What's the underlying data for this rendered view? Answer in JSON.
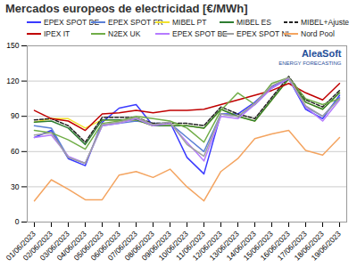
{
  "chart_data": {
    "type": "line",
    "title": "Mercados europeos de electricidad [€/MWh]",
    "annotations": [
      "AleaSoft",
      "ENERGY FORECASTING"
    ],
    "categories": [
      "01/06/2023",
      "02/06/2023",
      "03/06/2023",
      "04/06/2023",
      "05/06/2023",
      "06/06/2023",
      "07/06/2023",
      "08/06/2023",
      "09/06/2023",
      "10/06/2023",
      "11/06/2023",
      "12/06/2023",
      "13/06/2023",
      "14/06/2023",
      "15/06/2023",
      "16/06/2023",
      "17/06/2023",
      "18/06/2023",
      "19/06/2023"
    ],
    "series": [
      {
        "name": "EPEX SPOT DE",
        "color": "#3a3aff",
        "values": [
          72,
          78,
          54,
          48,
          85,
          97,
          100,
          82,
          85,
          55,
          41,
          92,
          92,
          102,
          115,
          122,
          96,
          88,
          108
        ]
      },
      {
        "name": "EPEX SPOT FR",
        "color": "#5b7fd6",
        "values": [
          82,
          80,
          55,
          50,
          82,
          84,
          86,
          84,
          84,
          72,
          60,
          92,
          90,
          100,
          114,
          122,
          98,
          90,
          106
        ]
      },
      {
        "name": "MIBEL PT",
        "color": "#f2e22e",
        "values": [
          85,
          88,
          88,
          80,
          87,
          87,
          87,
          82,
          82,
          82,
          80,
          96,
          90,
          86,
          104,
          122,
          102,
          96,
          110
        ]
      },
      {
        "name": "MIBEL ES",
        "color": "#2e7d32",
        "values": [
          85,
          86,
          80,
          66,
          87,
          87,
          87,
          82,
          82,
          82,
          80,
          96,
          90,
          86,
          104,
          122,
          102,
          96,
          110
        ]
      },
      {
        "name": "MIBEL+Ajuste",
        "color": "#222222",
        "line_style": "dashed",
        "values": [
          87,
          88,
          82,
          68,
          89,
          89,
          89,
          84,
          84,
          84,
          82,
          98,
          92,
          88,
          106,
          124,
          104,
          98,
          112
        ]
      },
      {
        "name": "IPEX IT",
        "color": "#c00000",
        "values": [
          95,
          88,
          86,
          78,
          92,
          93,
          95,
          93,
          95,
          95,
          96,
          100,
          104,
          108,
          112,
          118,
          110,
          104,
          118
        ]
      },
      {
        "name": "N2EX UK",
        "color": "#70ad47",
        "values": [
          78,
          76,
          70,
          62,
          84,
          86,
          90,
          88,
          86,
          80,
          68,
          95,
          110,
          100,
          118,
          123,
          105,
          100,
          105
        ]
      },
      {
        "name": "EPEX SPOT BE",
        "color": "#b57bff",
        "values": [
          72,
          74,
          56,
          50,
          82,
          84,
          88,
          82,
          84,
          68,
          52,
          90,
          88,
          100,
          114,
          122,
          98,
          86,
          104
        ]
      },
      {
        "name": "EPEX SPOT NL",
        "color": "#a0a0a0",
        "values": [
          74,
          76,
          55,
          50,
          83,
          85,
          89,
          83,
          85,
          66,
          56,
          92,
          90,
          101,
          116,
          123,
          99,
          90,
          105
        ]
      },
      {
        "name": "Nord Pool",
        "color": "#f4a460",
        "values": [
          18,
          36,
          28,
          19,
          19,
          40,
          43,
          38,
          45,
          30,
          18,
          43,
          54,
          71,
          75,
          78,
          61,
          57,
          72
        ]
      }
    ],
    "ylim": [
      0,
      150
    ],
    "yticks": [
      0,
      30,
      60,
      90,
      120,
      150
    ],
    "grid": true,
    "legend": "top"
  }
}
